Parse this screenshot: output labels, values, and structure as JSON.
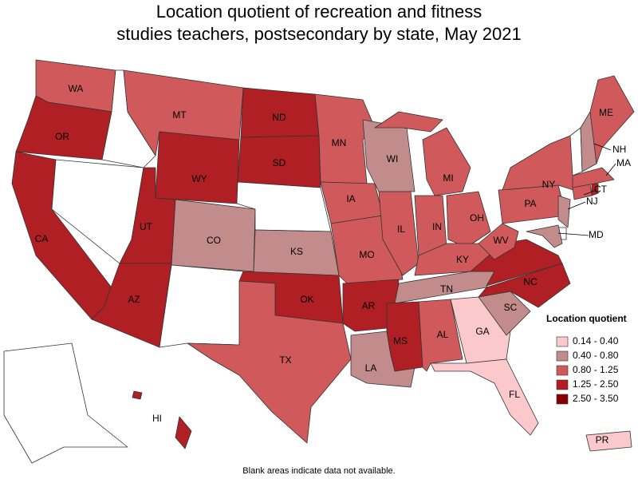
{
  "map": {
    "title": [
      "Location quotient of recreation and fitness",
      "studies teachers, postsecondary by state, May 2021"
    ],
    "legend": {
      "title": "Location quotient",
      "items": [
        {
          "label": "0.14 - 0.40",
          "color": "#fbc8cb"
        },
        {
          "label": "0.40 - 0.80",
          "color": "#c28c8c"
        },
        {
          "label": "0.80 - 1.25",
          "color": "#d05a5b"
        },
        {
          "label": "1.25 - 2.50",
          "color": "#b01f24"
        },
        {
          "label": "2.50 - 3.50",
          "color": "#860000"
        }
      ]
    },
    "note": "Blank areas indicate data not available.",
    "states": [
      {
        "label": "WA",
        "class": 2
      },
      {
        "label": "OR",
        "class": 3
      },
      {
        "label": "CA",
        "class": 3
      },
      {
        "label": null,
        "class": null
      },
      {
        "label": null,
        "class": null
      },
      {
        "label": "MT",
        "class": 2
      },
      {
        "label": "WY",
        "class": 3
      },
      {
        "label": "UT",
        "class": 3
      },
      {
        "label": "AZ",
        "class": 3
      },
      {
        "label": "CO",
        "class": 1
      },
      {
        "label": null,
        "class": null
      },
      {
        "label": "ND",
        "class": 3
      },
      {
        "label": "SD",
        "class": 3
      },
      {
        "label": null,
        "class": null
      },
      {
        "label": "KS",
        "class": 1
      },
      {
        "label": "OK",
        "class": 3
      },
      {
        "label": "TX",
        "class": 2
      },
      {
        "label": "MN",
        "class": 2
      },
      {
        "label": "IA",
        "class": 2
      },
      {
        "label": "MO",
        "class": 2
      },
      {
        "label": "AR",
        "class": 3
      },
      {
        "label": "LA",
        "class": 1
      },
      {
        "label": "WI",
        "class": 1
      },
      {
        "label": "IL",
        "class": 2
      },
      {
        "label": "MI",
        "class": 2
      },
      {
        "label": "IN",
        "class": 2
      },
      {
        "label": "OH",
        "class": 2
      },
      {
        "label": "KY",
        "class": 2
      },
      {
        "label": "TN",
        "class": 1
      },
      {
        "label": "MS",
        "class": 3
      },
      {
        "label": "AL",
        "class": 2
      },
      {
        "label": "GA",
        "class": 0
      },
      {
        "label": "FL",
        "class": 0
      },
      {
        "label": "SC",
        "class": 1
      },
      {
        "label": "NC",
        "class": 3
      },
      {
        "label": null,
        "class": 3
      },
      {
        "label": "WV",
        "class": 2
      },
      {
        "label": "PA",
        "class": 2
      },
      {
        "label": "NY",
        "class": 2
      },
      {
        "label": "NJ",
        "class": 1
      },
      {
        "label": null,
        "class": null
      },
      {
        "label": "MD",
        "class": 1
      },
      {
        "label": "CT",
        "class": 2
      },
      {
        "label": null,
        "class": 3
      },
      {
        "label": "MA",
        "class": 2
      },
      {
        "label": null,
        "class": null
      },
      {
        "label": "NH",
        "class": 1
      },
      {
        "label": "ME",
        "class": 2
      },
      {
        "label": null,
        "class": null
      },
      {
        "label": "HI",
        "class": 3
      },
      {
        "label": "PR",
        "class": 0
      }
    ]
  }
}
